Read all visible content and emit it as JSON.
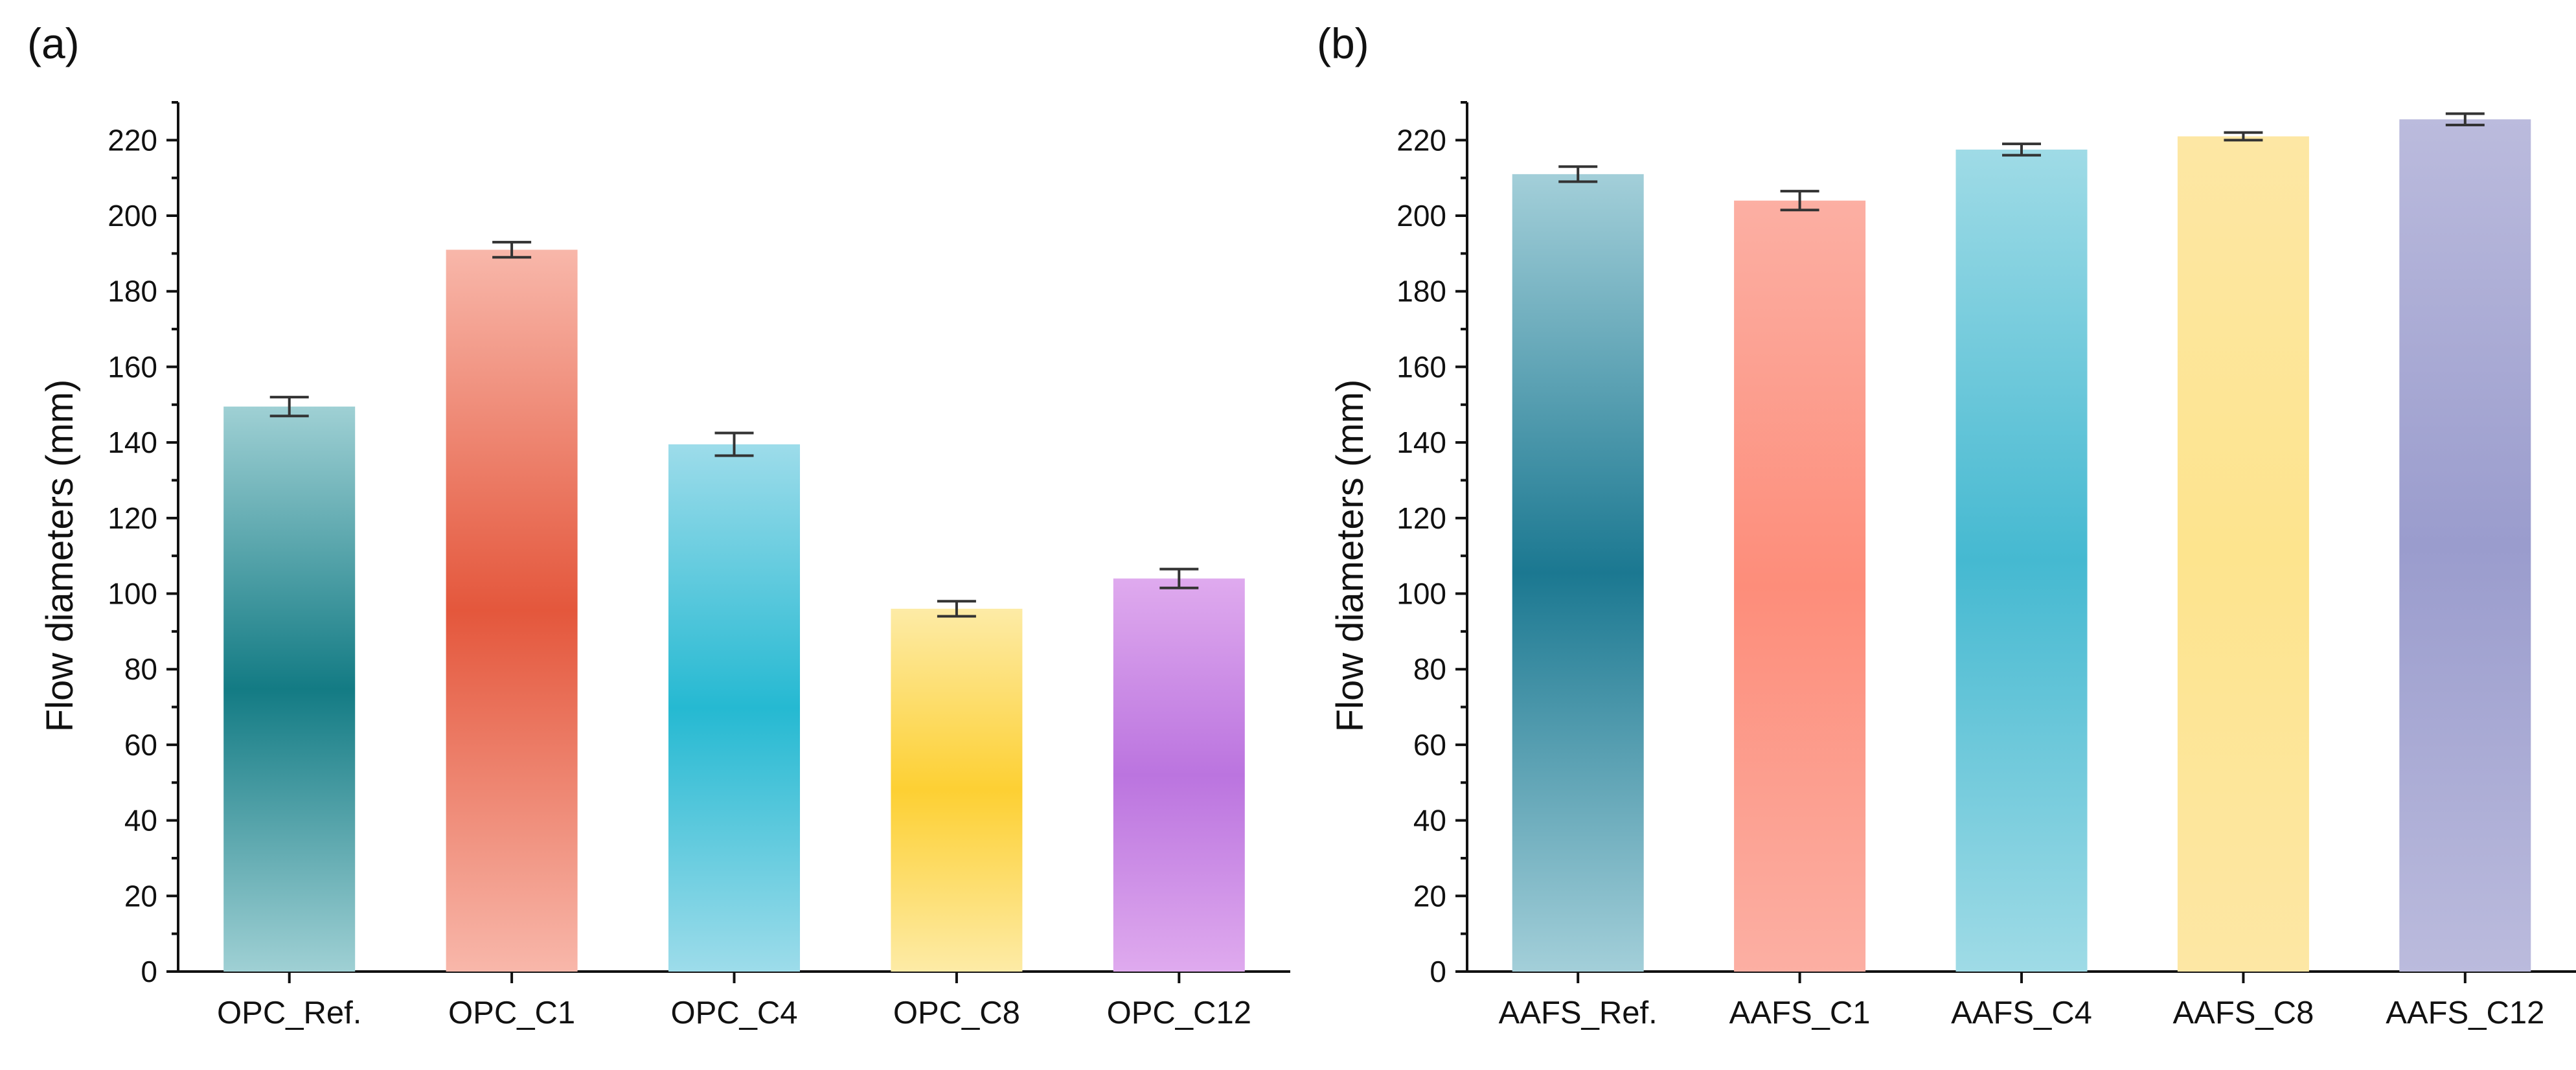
{
  "chart_data": [
    {
      "type": "bar",
      "panel_label": "(a)",
      "ylabel": "Flow diameters (mm)",
      "xlabel": "",
      "ylim": [
        0,
        230
      ],
      "yticks": [
        0,
        20,
        40,
        60,
        80,
        100,
        120,
        140,
        160,
        180,
        200,
        220
      ],
      "categories": [
        "OPC_Ref.",
        "OPC_C1",
        "OPC_C4",
        "OPC_C8",
        "OPC_C12"
      ],
      "values": [
        149.5,
        191,
        139.5,
        96,
        104
      ],
      "errors": [
        2.5,
        2,
        3,
        2,
        2.5
      ],
      "colors": [
        {
          "edge": "#9fd0d4",
          "mid": "#137b84",
          "center": 0.5
        },
        {
          "edge": "#f8b7aa",
          "mid": "#e4573c",
          "center": 0.5
        },
        {
          "edge": "#9ddcea",
          "mid": "#25b9d2",
          "center": 0.5
        },
        {
          "edge": "#fdeba6",
          "mid": "#fdd033",
          "center": 0.5
        },
        {
          "edge": "#dfaaee",
          "mid": "#bb74df",
          "center": 0.5
        }
      ]
    },
    {
      "type": "bar",
      "panel_label": "(b)",
      "ylabel": "Flow diameters (mm)",
      "xlabel": "",
      "ylim": [
        0,
        230
      ],
      "yticks": [
        0,
        20,
        40,
        60,
        80,
        100,
        120,
        140,
        160,
        180,
        200,
        220
      ],
      "categories": [
        "AAFS_Ref.",
        "AAFS_C1",
        "AAFS_C4",
        "AAFS_C8",
        "AAFS_C12"
      ],
      "values": [
        211,
        204,
        217.5,
        221,
        225.5
      ],
      "errors": [
        2,
        2.5,
        1.5,
        1,
        1.5
      ],
      "colors": [
        {
          "edge": "#a3cfd9",
          "mid": "#1b7891",
          "center": 0.5
        },
        {
          "edge": "#fcafa3",
          "mid": "#fd8d7a",
          "center": 0.5
        },
        {
          "edge": "#9fdbe6",
          "mid": "#45b9d1",
          "center": 0.5
        },
        {
          "edge": "#fde7a4",
          "mid": "#fde48e",
          "center": 0.5
        },
        {
          "edge": "#bbbbdd",
          "mid": "#9a9ccd",
          "center": 0.5
        }
      ]
    }
  ]
}
